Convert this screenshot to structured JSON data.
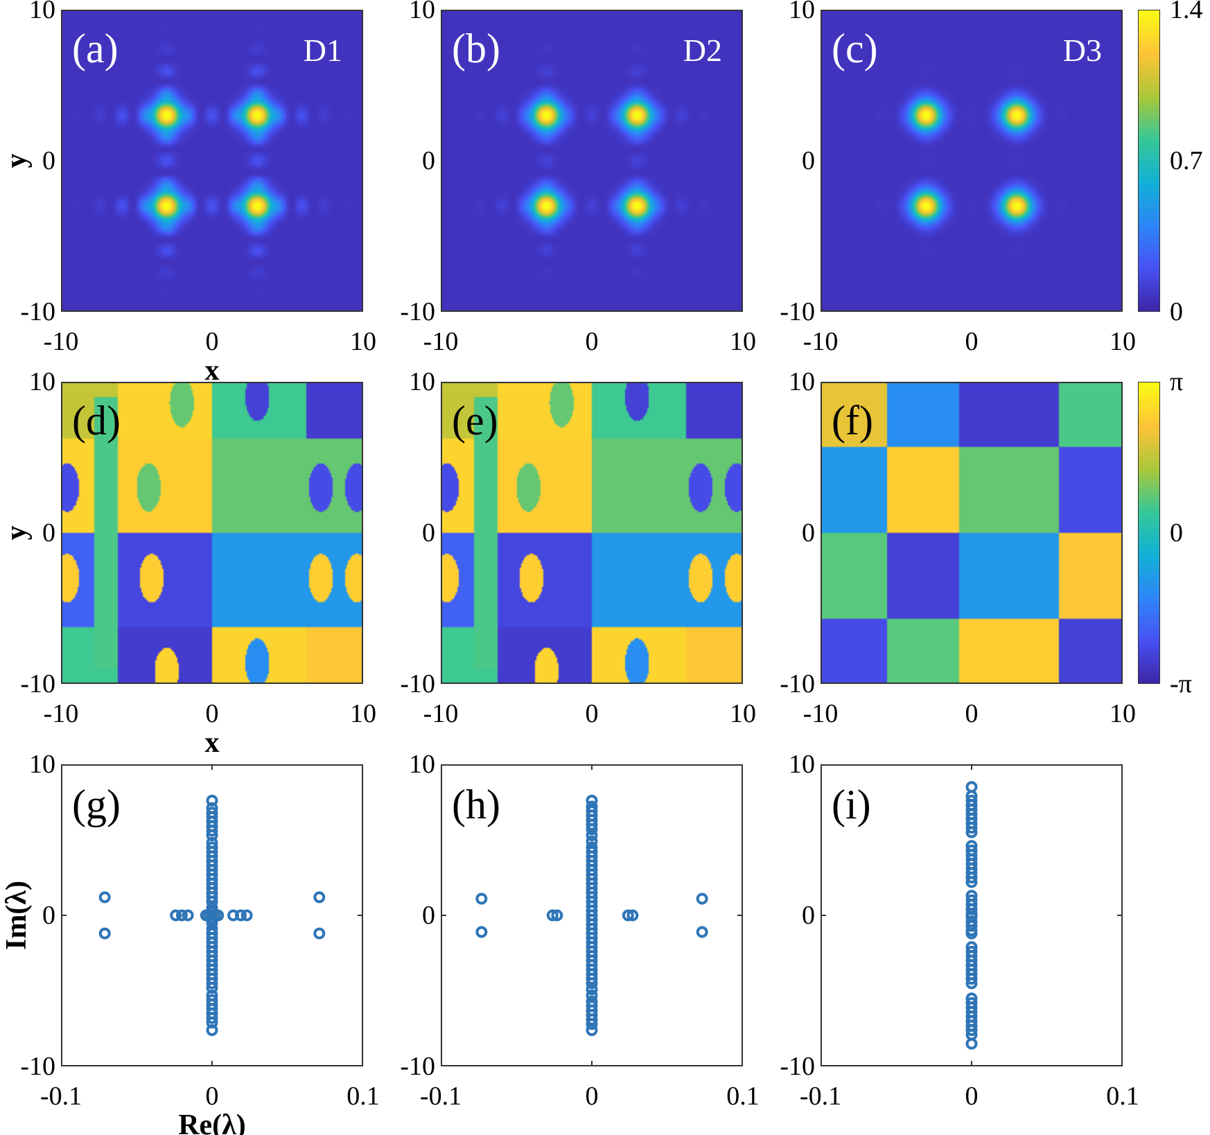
{
  "chart_data": [
    {
      "id": "a",
      "type": "heatmap",
      "label": "(a)",
      "tag": "D1",
      "quantity": "amplitude",
      "xlim": [
        -10,
        10
      ],
      "ylim": [
        -10,
        10
      ],
      "xticks": [
        "-10",
        "0",
        "10"
      ],
      "yticks": [
        "10",
        "0",
        "-10"
      ],
      "xlabel": "x",
      "ylabel": "y",
      "peaks": [
        [
          -3,
          3
        ],
        [
          3,
          3
        ],
        [
          -3,
          -3
        ],
        [
          3,
          -3
        ]
      ],
      "peak_value": 1.4,
      "sidelobes": "strong"
    },
    {
      "id": "b",
      "type": "heatmap",
      "label": "(b)",
      "tag": "D2",
      "quantity": "amplitude",
      "xlim": [
        -10,
        10
      ],
      "ylim": [
        -10,
        10
      ],
      "xticks": [
        "-10",
        "0",
        "10"
      ],
      "yticks": [
        "10",
        "0",
        "-10"
      ],
      "peaks": [
        [
          -3,
          3
        ],
        [
          3,
          3
        ],
        [
          -3,
          -3
        ],
        [
          3,
          -3
        ]
      ],
      "peak_value": 1.4,
      "sidelobes": "medium"
    },
    {
      "id": "c",
      "type": "heatmap",
      "label": "(c)",
      "tag": "D3",
      "quantity": "amplitude",
      "xlim": [
        -10,
        10
      ],
      "ylim": [
        -10,
        10
      ],
      "xticks": [
        "-10",
        "0",
        "10"
      ],
      "yticks": [
        "10",
        "0",
        "-10"
      ],
      "peaks": [
        [
          -3,
          3
        ],
        [
          3,
          3
        ],
        [
          -3,
          -3
        ],
        [
          3,
          -3
        ]
      ],
      "peak_value": 1.4,
      "sidelobes": "weak",
      "colorbar": {
        "range": [
          0,
          1.4
        ],
        "ticks": [
          "1.4",
          "0.7",
          "0"
        ]
      }
    },
    {
      "id": "d",
      "type": "heatmap",
      "label": "(d)",
      "quantity": "phase",
      "xlim": [
        -10,
        10
      ],
      "ylim": [
        -10,
        10
      ],
      "xticks": [
        "-10",
        "0",
        "10"
      ],
      "yticks": [
        "10",
        "0",
        "-10"
      ],
      "xlabel": "x",
      "ylabel": "y"
    },
    {
      "id": "e",
      "type": "heatmap",
      "label": "(e)",
      "quantity": "phase",
      "xlim": [
        -10,
        10
      ],
      "ylim": [
        -10,
        10
      ],
      "xticks": [
        "-10",
        "0",
        "10"
      ],
      "yticks": [
        "10",
        "0",
        "-10"
      ]
    },
    {
      "id": "f",
      "type": "heatmap",
      "label": "(f)",
      "quantity": "phase",
      "xlim": [
        -10,
        10
      ],
      "ylim": [
        -10,
        10
      ],
      "xticks": [
        "-10",
        "0",
        "10"
      ],
      "yticks": [
        "10",
        "0",
        "-10"
      ],
      "colorbar": {
        "range": [
          -3.1416,
          3.1416
        ],
        "ticks": [
          "π",
          "0",
          "-π"
        ]
      }
    },
    {
      "id": "g",
      "type": "scatter",
      "label": "(g)",
      "xlim": [
        -0.1,
        0.1
      ],
      "ylim": [
        -10,
        10
      ],
      "xticks": [
        "-0.1",
        "0",
        "0.1"
      ],
      "yticks": [
        "10",
        "0",
        "-10"
      ],
      "xlabel": "Re(λ)",
      "ylabel": "Im(λ)",
      "imag_axis_points": [
        7.6,
        7.1,
        6.8,
        6.5,
        6.2,
        5.9,
        5.6,
        5.3,
        4.8,
        4.5,
        4.2,
        3.9,
        3.6,
        3.3,
        3.0,
        2.7,
        2.4,
        2.1,
        1.8,
        1.5,
        1.2,
        0.9,
        0.5,
        0.2,
        0,
        -0.2,
        -0.5,
        -0.9,
        -1.2,
        -1.5,
        -1.8,
        -2.1,
        -2.4,
        -2.7,
        -3.0,
        -3.3,
        -3.6,
        -3.9,
        -4.2,
        -4.5,
        -4.8,
        -5.3,
        -5.6,
        -5.9,
        -6.2,
        -6.5,
        -6.8,
        -7.1,
        -7.6
      ],
      "other_points": [
        [
          -0.071,
          1.2
        ],
        [
          -0.071,
          -1.2
        ],
        [
          0.071,
          1.2
        ],
        [
          0.071,
          -1.2
        ],
        [
          -0.024,
          0
        ],
        [
          -0.02,
          0
        ],
        [
          -0.016,
          0
        ],
        [
          0.014,
          0
        ],
        [
          0.019,
          0
        ],
        [
          0.023,
          0
        ],
        [
          -0.004,
          0
        ],
        [
          -0.002,
          0
        ],
        [
          0.002,
          0
        ],
        [
          0.004,
          0
        ]
      ]
    },
    {
      "id": "h",
      "type": "scatter",
      "label": "(h)",
      "xlim": [
        -0.1,
        0.1
      ],
      "ylim": [
        -10,
        10
      ],
      "xticks": [
        "-0.1",
        "0",
        "0.1"
      ],
      "yticks": [
        "10",
        "0",
        "-10"
      ],
      "imag_axis_points": [
        7.6,
        7.2,
        6.9,
        6.6,
        6.3,
        6.0,
        5.7,
        5.3,
        4.9,
        4.5,
        4.2,
        3.9,
        3.6,
        3.3,
        3.0,
        2.7,
        2.4,
        2.1,
        1.8,
        1.5,
        1.2,
        0.9,
        0.6,
        0.3,
        0,
        -0.3,
        -0.6,
        -0.9,
        -1.2,
        -1.5,
        -1.8,
        -2.1,
        -2.4,
        -2.7,
        -3.0,
        -3.3,
        -3.6,
        -3.9,
        -4.2,
        -4.5,
        -4.9,
        -5.3,
        -5.7,
        -6.0,
        -6.3,
        -6.6,
        -6.9,
        -7.2,
        -7.6
      ],
      "other_points": [
        [
          -0.073,
          1.1
        ],
        [
          -0.073,
          -1.1
        ],
        [
          0.073,
          1.1
        ],
        [
          0.073,
          -1.1
        ],
        [
          -0.026,
          0
        ],
        [
          -0.023,
          0
        ],
        [
          0.024,
          0
        ],
        [
          0.027,
          0
        ]
      ]
    },
    {
      "id": "i",
      "type": "scatter",
      "label": "(i)",
      "xlim": [
        -0.1,
        0.1
      ],
      "ylim": [
        -10,
        10
      ],
      "xticks": [
        "-0.1",
        "0",
        "0.1"
      ],
      "yticks": [
        "10",
        "0",
        "-10"
      ],
      "imag_axis_points": [
        8.5,
        7.9,
        7.6,
        7.3,
        7.0,
        6.7,
        6.4,
        6.1,
        5.8,
        5.5,
        4.6,
        4.3,
        4.0,
        3.7,
        3.4,
        3.1,
        2.8,
        2.5,
        2.2,
        1.3,
        1.0,
        0.7,
        0.4,
        0.1,
        -0.1,
        -0.4,
        -0.7,
        -1.0,
        -1.2,
        -2.1,
        -2.4,
        -2.7,
        -3.0,
        -3.3,
        -3.6,
        -3.9,
        -4.2,
        -4.5,
        -5.5,
        -5.8,
        -6.1,
        -6.4,
        -6.7,
        -7.0,
        -7.3,
        -7.6,
        -7.9,
        -8.5
      ],
      "other_points": []
    }
  ],
  "colors": {
    "marker": "#2e75b6",
    "axis": "#333333",
    "panel_label_on_map": "#ffffff"
  }
}
